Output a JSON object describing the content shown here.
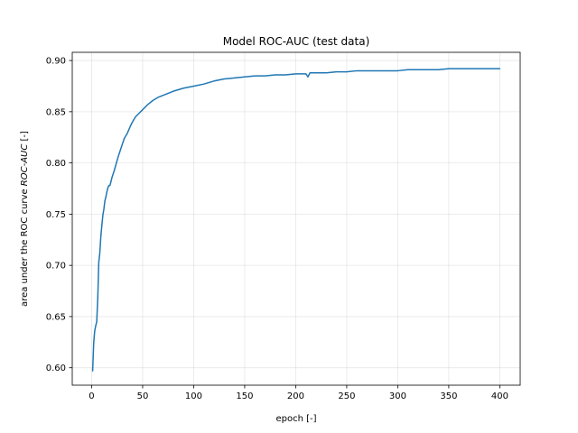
{
  "chart_data": {
    "type": "line",
    "title": "Model ROC-AUC (test data)",
    "xlabel": "epoch [-]",
    "ylabel_prefix": "area under the ROC curve ",
    "ylabel_italic": "ROC-AUC",
    "ylabel_suffix": " [-]",
    "xlim": [
      -19,
      420
    ],
    "ylim": [
      0.583,
      0.908
    ],
    "xticks": [
      0,
      50,
      100,
      150,
      200,
      250,
      300,
      350,
      400
    ],
    "yticks": [
      0.6,
      0.65,
      0.7,
      0.75,
      0.8,
      0.85,
      0.9
    ],
    "grid": true,
    "colors": {
      "series": "#1f77b4"
    },
    "series": [
      {
        "x": [
          1,
          2,
          3,
          4,
          5,
          6,
          7,
          8,
          9,
          10,
          11,
          12,
          13,
          14,
          15,
          16,
          17,
          18,
          20,
          22,
          24,
          26,
          28,
          30,
          32,
          35,
          38,
          40,
          43,
          46,
          50,
          55,
          60,
          65,
          70,
          80,
          90,
          100,
          110,
          120,
          130,
          140,
          150,
          160,
          170,
          180,
          190,
          200,
          210,
          212,
          214,
          220,
          230,
          240,
          250,
          260,
          270,
          280,
          290,
          300,
          310,
          320,
          330,
          340,
          350,
          360,
          370,
          380,
          390,
          400
        ],
        "y": [
          0.597,
          0.624,
          0.636,
          0.641,
          0.645,
          0.668,
          0.703,
          0.712,
          0.728,
          0.739,
          0.749,
          0.755,
          0.763,
          0.767,
          0.772,
          0.776,
          0.778,
          0.778,
          0.786,
          0.792,
          0.799,
          0.806,
          0.812,
          0.818,
          0.824,
          0.829,
          0.836,
          0.84,
          0.845,
          0.848,
          0.852,
          0.857,
          0.861,
          0.864,
          0.866,
          0.87,
          0.873,
          0.875,
          0.877,
          0.88,
          0.882,
          0.883,
          0.884,
          0.885,
          0.885,
          0.886,
          0.886,
          0.887,
          0.887,
          0.884,
          0.888,
          0.888,
          0.888,
          0.889,
          0.889,
          0.89,
          0.89,
          0.89,
          0.89,
          0.89,
          0.891,
          0.891,
          0.891,
          0.891,
          0.892,
          0.892,
          0.892,
          0.892,
          0.892,
          0.892
        ]
      }
    ]
  }
}
